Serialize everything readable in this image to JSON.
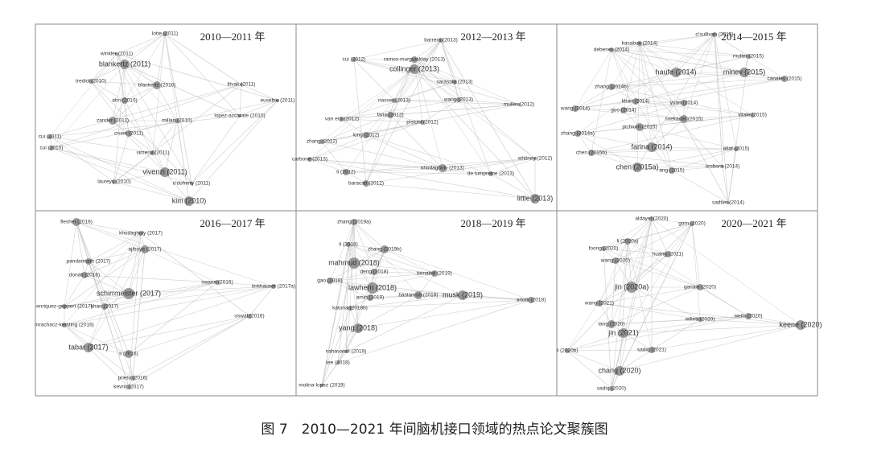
{
  "caption": "图 7　2010—2021 年间脑机接口领域的热点论文聚簇图",
  "panels": [
    {
      "title": "2010—2011 年",
      "nodes": [
        "lotte (2011)",
        "winkler (2011)",
        "blankertz (2011)",
        "tredici (2010)",
        "blankertz (2010)",
        "ahn (2010)",
        "zander (2011)",
        "cruse (2011)",
        "millan (2010)",
        "simeral (2011)",
        "vivenzi (2011)",
        "laureys (2010)",
        "kim (2010)",
        "cui (2011)",
        "cui (2010)",
        "litvak (2011)",
        "eusebio (2011)",
        "lopez-azcarate (2010)",
        "o'doherty (2011)"
      ]
    },
    {
      "title": "2012—2013 年",
      "nodes": [
        "barrera (2013)",
        "ramos-murguialday (2013)",
        "collinger (2013)",
        "cui (2012)",
        "sarasola (2013)",
        "nasser (2013)",
        "wang (2013)",
        "muller (2012)",
        "van erp (2012)",
        "faria (2012)",
        "pistohl (2012)",
        "zhang (2012)",
        "long (2012)",
        "khodagholy (2013)",
        "carbone (2013)",
        "li (2012)",
        "de lumpreine (2013)",
        "whitney (2012)",
        "little (2013)",
        "baracatt (2012)"
      ]
    },
    {
      "title": "2014—2015 年",
      "nodes": [
        "o'sullivan (2015)",
        "kasabov (2014)",
        "debener (2014)",
        "muller (2015)",
        "haufe (2014)",
        "minev (2015)",
        "canales (2015)",
        "zhang (2014b)",
        "wang (2014)",
        "khan (2014)",
        "guo (2014)",
        "yuan (2014)",
        "soekadar (2015)",
        "vitale (2015)",
        "pichiorri (2015)",
        "zhang (2014a)",
        "farina (2014)",
        "chen (2015b)",
        "altaf (2015)",
        "chen (2015a)",
        "ang (2015)",
        "orsborn (2014)",
        "sadtler (2014)"
      ]
    },
    {
      "title": "2016—2017 年",
      "nodes": [
        "fleshet (2016)",
        "khodagholy (2017)",
        "ajiboye (2017)",
        "pandarinath (2017)",
        "donati (2016)",
        "schirrmeister (2017)",
        "enriquez-geppert (2017)",
        "khan (2017)",
        "swann (2016)",
        "tinkhauser (2017a)",
        "mrachacz-kersting (2016)",
        "tabar (2017)",
        "li (2016)",
        "oswal (2016)",
        "prieto (2016)",
        "kevric (2017)"
      ]
    },
    {
      "title": "2018—2019 年",
      "nodes": [
        "zhang (2019a)",
        "li (2018)",
        "zhang (2019b)",
        "mahmud (2018)",
        "deng (2018)",
        "benabid (2019)",
        "gao (2018)",
        "lawhern (2018)",
        "amin (2019)",
        "baslamisli (2018)",
        "musk (2019)",
        "arlotti (2018)",
        "katona (2018b)",
        "yang (2018)",
        "nahavandi (2019)",
        "tee (2018)",
        "molina-lopez (2019)"
      ]
    },
    {
      "title": "2020—2021 年",
      "nodes": [
        "aldayel (2020)",
        "gorn (2020)",
        "li (2020a)",
        "foong (2020)",
        "huang (2021)",
        "wang (2020)",
        "jin (2020a)",
        "ganaie (2020)",
        "wang (2021)",
        "tang (2020)",
        "willett (2020)",
        "wells (2020)",
        "keene (2020)",
        "jin (2021)",
        "sadiq (2021)",
        "li (2020b)",
        "chang (2020)",
        "sadiq (2020)"
      ]
    }
  ]
}
